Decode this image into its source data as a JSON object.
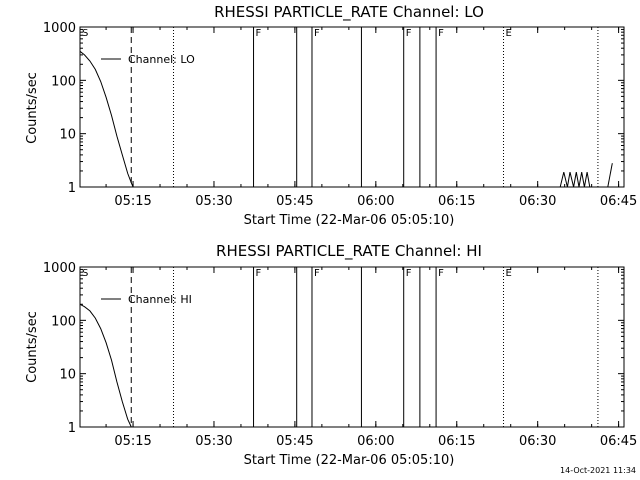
{
  "chart_data": [
    {
      "type": "line",
      "title": "RHESSI PARTICLE_RATE Channel: LO",
      "xlabel": "Start Time (22-Mar-06 05:05:10)",
      "ylabel": "Counts/sec",
      "y_scale": "log",
      "ylim": [
        1,
        1000
      ],
      "xlim": [
        "05:05:10",
        "06:46:00"
      ],
      "x_ticks": [
        "05:15",
        "05:30",
        "05:45",
        "06:00",
        "06:15",
        "06:30",
        "06:45"
      ],
      "y_ticks": [
        "1",
        "10",
        "100",
        "1000"
      ],
      "legend": "top-left",
      "grid": false,
      "series": [
        {
          "name": "Channel: LO",
          "x": [
            "05:05:10",
            "05:06:00",
            "05:07:00",
            "05:08:00",
            "05:09:00",
            "05:10:00",
            "05:11:00",
            "05:12:00",
            "05:13:00",
            "05:14:00",
            "05:14:40",
            "05:15:00"
          ],
          "y": [
            350,
            300,
            230,
            160,
            95,
            48,
            22,
            9,
            4,
            1.8,
            1.2,
            1
          ],
          "segments_after_gap": [
            {
              "x": [
                "06:34:10",
                "06:34:50",
                "06:35:30",
                "06:36:00",
                "06:36:40",
                "06:37:10",
                "06:37:40",
                "06:38:10",
                "06:38:40",
                "06:39:10",
                "06:39:40",
                "06:40:10",
                "06:40:50"
              ],
              "y": [
                1,
                1.9,
                1,
                1.9,
                1,
                1.9,
                1,
                1.9,
                1,
                1.9,
                1,
                1,
                1
              ]
            },
            {
              "x": [
                "06:43:00",
                "06:43:50"
              ],
              "y": [
                1,
                2.8
              ]
            }
          ]
        }
      ],
      "event_markers": [
        {
          "time": "05:05:10",
          "style": "label",
          "label": "S"
        },
        {
          "time": "05:14:40",
          "style": "dashed"
        },
        {
          "time": "05:22:30",
          "style": "dotted"
        },
        {
          "time": "05:37:20",
          "style": "solid",
          "label": "F"
        },
        {
          "time": "05:45:20",
          "style": "solid"
        },
        {
          "time": "05:48:10",
          "style": "solid",
          "label": "F"
        },
        {
          "time": "05:57:20",
          "style": "solid"
        },
        {
          "time": "06:05:10",
          "style": "solid",
          "label": "F"
        },
        {
          "time": "06:08:10",
          "style": "solid"
        },
        {
          "time": "06:11:10",
          "style": "solid",
          "label": "F"
        },
        {
          "time": "06:23:40",
          "style": "dotted",
          "label": "E"
        },
        {
          "time": "06:41:10",
          "style": "dotted"
        }
      ]
    },
    {
      "type": "line",
      "title": "RHESSI PARTICLE_RATE Channel: HI",
      "xlabel": "Start Time (22-Mar-06 05:05:10)",
      "ylabel": "Counts/sec",
      "y_scale": "log",
      "ylim": [
        1,
        1000
      ],
      "xlim": [
        "05:05:10",
        "06:46:00"
      ],
      "x_ticks": [
        "05:15",
        "05:30",
        "05:45",
        "06:00",
        "06:15",
        "06:30",
        "06:45"
      ],
      "y_ticks": [
        "1",
        "10",
        "100",
        "1000"
      ],
      "legend": "top-left",
      "grid": false,
      "series": [
        {
          "name": "Channel: HI",
          "x": [
            "05:05:10",
            "05:06:00",
            "05:07:00",
            "05:08:00",
            "05:09:00",
            "05:10:00",
            "05:11:00",
            "05:12:00",
            "05:13:00",
            "05:14:00",
            "05:14:40"
          ],
          "y": [
            200,
            180,
            150,
            110,
            70,
            38,
            18,
            7,
            3,
            1.4,
            1
          ]
        }
      ],
      "event_markers": [
        {
          "time": "05:05:10",
          "style": "label",
          "label": "S"
        },
        {
          "time": "05:14:40",
          "style": "dashed"
        },
        {
          "time": "05:22:30",
          "style": "dotted"
        },
        {
          "time": "05:37:20",
          "style": "solid",
          "label": "F"
        },
        {
          "time": "05:45:20",
          "style": "solid"
        },
        {
          "time": "05:48:10",
          "style": "solid",
          "label": "F"
        },
        {
          "time": "05:57:20",
          "style": "solid"
        },
        {
          "time": "06:05:10",
          "style": "solid",
          "label": "F"
        },
        {
          "time": "06:08:10",
          "style": "solid"
        },
        {
          "time": "06:11:10",
          "style": "solid",
          "label": "F"
        },
        {
          "time": "06:23:40",
          "style": "dotted",
          "label": "E"
        },
        {
          "time": "06:41:10",
          "style": "dotted"
        }
      ]
    }
  ],
  "footer": {
    "timestamp": "14-Oct-2021 11:34"
  },
  "colors": {
    "background": "#ffffff",
    "ink": "#000000"
  }
}
